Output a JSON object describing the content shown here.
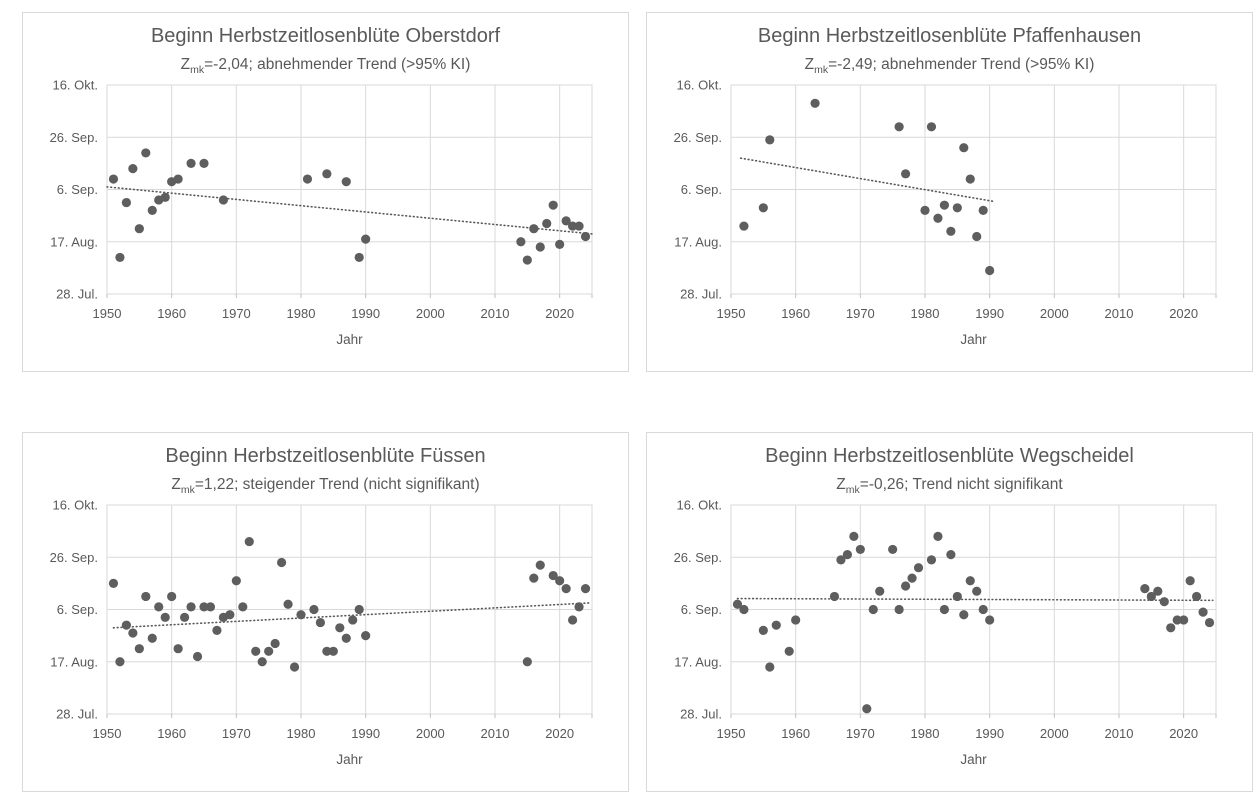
{
  "page": {
    "background": "#ffffff"
  },
  "colors": {
    "point": "#5e5e5e",
    "grid": "#d9d9d9",
    "panel_border": "#d9d9d9",
    "axis_tick": "#bfbfbf",
    "text": "#595959",
    "trend": "#595959"
  },
  "axes": {
    "x_label": "Jahr",
    "x_range": [
      1950,
      2025
    ],
    "x_ticks": [
      1950,
      1960,
      1970,
      1980,
      1990,
      2000,
      2010,
      2020
    ],
    "y_unit": "day_of_year",
    "y_range_days": [
      209,
      289
    ],
    "y_ticks": [
      {
        "day": 209,
        "label": "28. Jul."
      },
      {
        "day": 229,
        "label": "17. Aug."
      },
      {
        "day": 249,
        "label": "6. Sep."
      },
      {
        "day": 269,
        "label": "26. Sep."
      },
      {
        "day": 289,
        "label": "16. Okt."
      }
    ],
    "grid": true
  },
  "chart_data": [
    {
      "type": "scatter",
      "id": "oberstdorf",
      "title": "Beginn Herbstzeitlosenblüte Oberstdorf",
      "subtitle_parts": {
        "z": "Z",
        "sub": "mk",
        "rest": "=-2,04; abnehmender Trend (>95% KI)"
      },
      "xlabel": "Jahr",
      "trend": {
        "style": "dotted",
        "x1": 1950,
        "y1_day": 250,
        "x2": 2025,
        "y2_day": 232
      },
      "points_year_day": [
        [
          1951,
          253
        ],
        [
          1952,
          223
        ],
        [
          1953,
          244
        ],
        [
          1954,
          257
        ],
        [
          1955,
          234
        ],
        [
          1956,
          263
        ],
        [
          1957,
          241
        ],
        [
          1958,
          245
        ],
        [
          1959,
          246
        ],
        [
          1960,
          252
        ],
        [
          1961,
          253
        ],
        [
          1963,
          259
        ],
        [
          1965,
          259
        ],
        [
          1968,
          245
        ],
        [
          1981,
          253
        ],
        [
          1984,
          255
        ],
        [
          1987,
          252
        ],
        [
          1989,
          223
        ],
        [
          1990,
          230
        ],
        [
          2014,
          229
        ],
        [
          2015,
          222
        ],
        [
          2016,
          234
        ],
        [
          2017,
          227
        ],
        [
          2018,
          236
        ],
        [
          2019,
          243
        ],
        [
          2020,
          228
        ],
        [
          2021,
          237
        ],
        [
          2022,
          235
        ],
        [
          2023,
          235
        ],
        [
          2024,
          231
        ]
      ]
    },
    {
      "type": "scatter",
      "id": "pfaffenhausen",
      "title": "Beginn Herbstzeitlosenblüte Pfaffenhausen",
      "subtitle_parts": {
        "z": "Z",
        "sub": "mk",
        "rest": "=-2,49; abnehmender Trend (>95% KI)"
      },
      "xlabel": "Jahr",
      "trend": {
        "style": "dotted",
        "x1": 1951.5,
        "y1_day": 261,
        "x2": 1990.5,
        "y2_day": 244.5
      },
      "points_year_day": [
        [
          1952,
          235
        ],
        [
          1955,
          242
        ],
        [
          1956,
          268
        ],
        [
          1963,
          282
        ],
        [
          1976,
          273
        ],
        [
          1977,
          255
        ],
        [
          1980,
          241
        ],
        [
          1981,
          273
        ],
        [
          1982,
          238
        ],
        [
          1983,
          243
        ],
        [
          1984,
          233
        ],
        [
          1985,
          242
        ],
        [
          1986,
          265
        ],
        [
          1987,
          253
        ],
        [
          1988,
          231
        ],
        [
          1989,
          241
        ],
        [
          1990,
          218
        ]
      ]
    },
    {
      "type": "scatter",
      "id": "fuessen",
      "title": "Beginn Herbstzeitlosenblüte Füssen",
      "subtitle_parts": {
        "z": "Z",
        "sub": "mk",
        "rest": "=1,22; steigender Trend (nicht signifikant)"
      },
      "xlabel": "Jahr",
      "trend": {
        "style": "dotted",
        "x1": 1951,
        "y1_day": 242,
        "x2": 2024.5,
        "y2_day": 251.5
      },
      "points_year_day": [
        [
          1951,
          259
        ],
        [
          1952,
          229
        ],
        [
          1953,
          243
        ],
        [
          1954,
          240
        ],
        [
          1955,
          234
        ],
        [
          1956,
          254
        ],
        [
          1957,
          238
        ],
        [
          1958,
          250
        ],
        [
          1959,
          246
        ],
        [
          1960,
          254
        ],
        [
          1961,
          234
        ],
        [
          1962,
          246
        ],
        [
          1963,
          250
        ],
        [
          1964,
          231
        ],
        [
          1965,
          250
        ],
        [
          1966,
          250
        ],
        [
          1967,
          241
        ],
        [
          1968,
          246
        ],
        [
          1969,
          247
        ],
        [
          1970,
          260
        ],
        [
          1971,
          250
        ],
        [
          1972,
          275
        ],
        [
          1973,
          233
        ],
        [
          1974,
          229
        ],
        [
          1975,
          233
        ],
        [
          1976,
          236
        ],
        [
          1977,
          267
        ],
        [
          1978,
          251
        ],
        [
          1979,
          227
        ],
        [
          1980,
          247
        ],
        [
          1982,
          249
        ],
        [
          1983,
          244
        ],
        [
          1984,
          233
        ],
        [
          1985,
          233
        ],
        [
          1986,
          242
        ],
        [
          1987,
          238
        ],
        [
          1988,
          245
        ],
        [
          1989,
          249
        ],
        [
          1990,
          239
        ],
        [
          2015,
          229
        ],
        [
          2016,
          261
        ],
        [
          2017,
          266
        ],
        [
          2019,
          262
        ],
        [
          2020,
          260
        ],
        [
          2021,
          257
        ],
        [
          2022,
          245
        ],
        [
          2023,
          250
        ],
        [
          2024,
          257
        ]
      ]
    },
    {
      "type": "scatter",
      "id": "wegscheidel",
      "title": "Beginn Herbstzeitlosenblüte Wegscheidel",
      "subtitle_parts": {
        "z": "Z",
        "sub": "mk",
        "rest": "=-0,26; Trend nicht signifikant"
      },
      "xlabel": "Jahr",
      "trend": {
        "style": "dotted",
        "x1": 1951,
        "y1_day": 253.2,
        "x2": 2024.5,
        "y2_day": 252.5
      },
      "points_year_day": [
        [
          1951,
          251
        ],
        [
          1952,
          249
        ],
        [
          1955,
          241
        ],
        [
          1956,
          227
        ],
        [
          1957,
          243
        ],
        [
          1959,
          233
        ],
        [
          1960,
          245
        ],
        [
          1966,
          254
        ],
        [
          1967,
          268
        ],
        [
          1968,
          270
        ],
        [
          1969,
          277
        ],
        [
          1970,
          272
        ],
        [
          1971,
          211
        ],
        [
          1972,
          249
        ],
        [
          1973,
          256
        ],
        [
          1975,
          272
        ],
        [
          1976,
          249
        ],
        [
          1977,
          258
        ],
        [
          1978,
          261
        ],
        [
          1979,
          265
        ],
        [
          1981,
          268
        ],
        [
          1982,
          277
        ],
        [
          1983,
          249
        ],
        [
          1984,
          270
        ],
        [
          1985,
          254
        ],
        [
          1986,
          247
        ],
        [
          1987,
          260
        ],
        [
          1988,
          256
        ],
        [
          1989,
          249
        ],
        [
          1990,
          245
        ],
        [
          2014,
          257
        ],
        [
          2015,
          254
        ],
        [
          2016,
          256
        ],
        [
          2017,
          252
        ],
        [
          2018,
          242
        ],
        [
          2019,
          245
        ],
        [
          2020,
          245
        ],
        [
          2021,
          260
        ],
        [
          2022,
          254
        ],
        [
          2023,
          248
        ],
        [
          2024,
          244
        ]
      ]
    }
  ]
}
